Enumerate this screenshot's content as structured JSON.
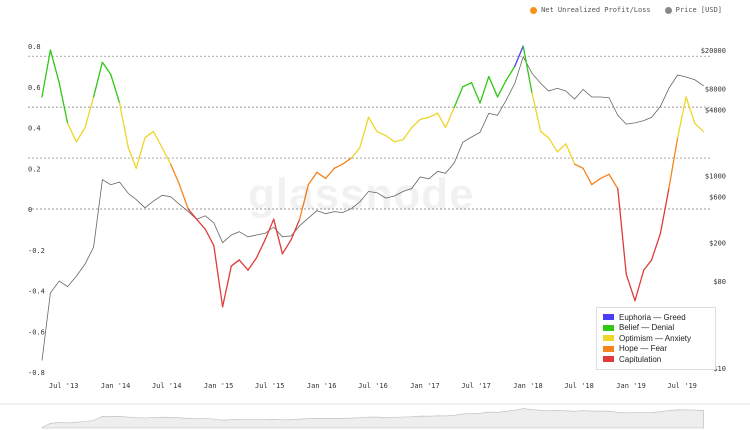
{
  "legend": {
    "nupl_label": "Net Unrealized Profit/Loss",
    "price_label": "Price [USD]",
    "nupl_color": "#f7931a",
    "price_color": "#888888"
  },
  "watermark": "glassnode",
  "zones": [
    {
      "label": "Euphoria — Greed",
      "color": "#4b3cf5"
    },
    {
      "label": "Belief — Denial",
      "color": "#2fc814"
    },
    {
      "label": "Optimism — Anxiety",
      "color": "#eed52a"
    },
    {
      "label": "Hope — Fear",
      "color": "#f5841f"
    },
    {
      "label": "Capitulation",
      "color": "#e03a3a"
    }
  ],
  "chart_data": {
    "type": "line",
    "title": "",
    "x_ticks": [
      "Jul '13",
      "Jan '14",
      "Jul '14",
      "Jan '15",
      "Jul '15",
      "Jan '16",
      "Jul '16",
      "Jan '17",
      "Jul '17",
      "Jan '18",
      "Jul '18",
      "Jan '19",
      "Jul '19"
    ],
    "y_left_ticks": [
      "0.8",
      "0.6",
      "0.4",
      "0.2",
      "0",
      "-0.2",
      "-0.4",
      "-0.6",
      "-0.8"
    ],
    "y_right_ticks": [
      "$20000",
      "$8000",
      "$4800",
      "$1000",
      "$600",
      "$200",
      "$80",
      "$10"
    ],
    "ylim_left": [
      -0.8,
      0.8
    ],
    "grid": "horizontal dashed at 0.75, 0.5, 0.25, 0",
    "legend_position": "bottom-right",
    "series": [
      {
        "name": "Net Unrealized Profit/Loss",
        "axis": "left",
        "x": [
          "2013-04",
          "2013-05",
          "2013-06",
          "2013-07",
          "2013-08",
          "2013-09",
          "2013-10",
          "2013-11",
          "2013-12",
          "2014-01",
          "2014-02",
          "2014-03",
          "2014-04",
          "2014-05",
          "2014-06",
          "2014-07",
          "2014-08",
          "2014-09",
          "2014-10",
          "2014-11",
          "2014-12",
          "2015-01",
          "2015-02",
          "2015-03",
          "2015-04",
          "2015-05",
          "2015-06",
          "2015-07",
          "2015-08",
          "2015-09",
          "2015-10",
          "2015-11",
          "2015-12",
          "2016-01",
          "2016-02",
          "2016-03",
          "2016-04",
          "2016-05",
          "2016-06",
          "2016-07",
          "2016-08",
          "2016-09",
          "2016-10",
          "2016-11",
          "2016-12",
          "2017-01",
          "2017-02",
          "2017-03",
          "2017-04",
          "2017-05",
          "2017-06",
          "2017-07",
          "2017-08",
          "2017-09",
          "2017-10",
          "2017-11",
          "2017-12",
          "2018-01",
          "2018-02",
          "2018-03",
          "2018-04",
          "2018-05",
          "2018-06",
          "2018-07",
          "2018-08",
          "2018-09",
          "2018-10",
          "2018-11",
          "2018-12",
          "2019-01",
          "2019-02",
          "2019-03",
          "2019-04",
          "2019-05",
          "2019-06",
          "2019-07",
          "2019-08",
          "2019-09"
        ],
        "values": [
          0.55,
          0.78,
          0.62,
          0.42,
          0.33,
          0.4,
          0.55,
          0.72,
          0.66,
          0.52,
          0.3,
          0.2,
          0.35,
          0.38,
          0.3,
          0.22,
          0.12,
          0.0,
          -0.05,
          -0.1,
          -0.18,
          -0.48,
          -0.28,
          -0.25,
          -0.3,
          -0.24,
          -0.15,
          -0.05,
          -0.22,
          -0.15,
          -0.05,
          0.12,
          0.18,
          0.15,
          0.2,
          0.22,
          0.25,
          0.3,
          0.45,
          0.38,
          0.36,
          0.33,
          0.34,
          0.4,
          0.44,
          0.45,
          0.47,
          0.4,
          0.5,
          0.6,
          0.62,
          0.52,
          0.65,
          0.55,
          0.63,
          0.7,
          0.8,
          0.57,
          0.38,
          0.35,
          0.28,
          0.32,
          0.22,
          0.2,
          0.12,
          0.15,
          0.17,
          0.1,
          -0.32,
          -0.45,
          -0.3,
          -0.25,
          -0.12,
          0.1,
          0.35,
          0.55,
          0.42,
          0.38
        ]
      },
      {
        "name": "Price [USD]",
        "axis": "right",
        "x": [
          "2013-04",
          "2013-05",
          "2013-06",
          "2013-07",
          "2013-08",
          "2013-09",
          "2013-10",
          "2013-11",
          "2013-12",
          "2014-01",
          "2014-02",
          "2014-03",
          "2014-04",
          "2014-05",
          "2014-06",
          "2014-07",
          "2014-08",
          "2014-09",
          "2014-10",
          "2014-11",
          "2014-12",
          "2015-01",
          "2015-02",
          "2015-03",
          "2015-04",
          "2015-05",
          "2015-06",
          "2015-07",
          "2015-08",
          "2015-09",
          "2015-10",
          "2015-11",
          "2015-12",
          "2016-01",
          "2016-02",
          "2016-03",
          "2016-04",
          "2016-05",
          "2016-06",
          "2016-07",
          "2016-08",
          "2016-09",
          "2016-10",
          "2016-11",
          "2016-12",
          "2017-01",
          "2017-02",
          "2017-03",
          "2017-04",
          "2017-05",
          "2017-06",
          "2017-07",
          "2017-08",
          "2017-09",
          "2017-10",
          "2017-11",
          "2017-12",
          "2018-01",
          "2018-02",
          "2018-03",
          "2018-04",
          "2018-05",
          "2018-06",
          "2018-07",
          "2018-08",
          "2018-09",
          "2018-10",
          "2018-11",
          "2018-12",
          "2019-01",
          "2019-02",
          "2019-03",
          "2019-04",
          "2019-05",
          "2019-06",
          "2019-07",
          "2019-08",
          "2019-09"
        ],
        "values": [
          12,
          60,
          80,
          70,
          90,
          120,
          180,
          900,
          800,
          850,
          650,
          560,
          460,
          540,
          620,
          600,
          500,
          420,
          350,
          380,
          320,
          200,
          240,
          260,
          230,
          240,
          250,
          290,
          230,
          235,
          300,
          360,
          430,
          400,
          420,
          410,
          450,
          530,
          680,
          660,
          580,
          610,
          680,
          730,
          960,
          920,
          1100,
          1050,
          1350,
          2200,
          2500,
          2800,
          4400,
          4200,
          6000,
          9000,
          17000,
          11500,
          9000,
          7500,
          8000,
          7500,
          6200,
          7800,
          6500,
          6500,
          6400,
          4200,
          3400,
          3500,
          3700,
          4000,
          5200,
          8000,
          11000,
          10500,
          9800,
          8500
        ]
      }
    ]
  }
}
